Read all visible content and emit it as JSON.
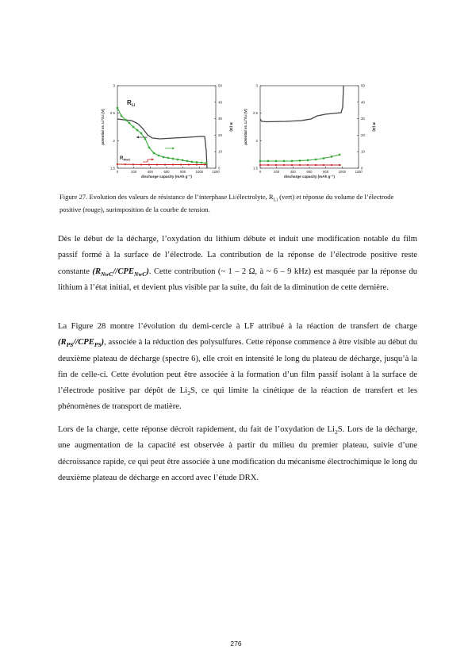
{
  "figure": {
    "left_panel": {
      "y_ticks": [
        "1.5",
        "2",
        "2.5",
        "3"
      ],
      "y2_ticks": [
        "0",
        "10",
        "20",
        "30",
        "40",
        "50"
      ],
      "x_ticks": [
        "0",
        "200",
        "400",
        "600",
        "800",
        "1000",
        "1200"
      ],
      "ylabel": "potential vs. Li⁺/Li (V)",
      "y2label": "R (Ω)",
      "xlabel": "discharge capacity (mAh g⁻¹)",
      "label_rli": "R",
      "label_rli_sub": "Li",
      "label_rnwc": "R",
      "label_rnwc_sub": "NwC"
    },
    "right_panel": {
      "y_ticks": [
        "1.5",
        "2",
        "2.5",
        "3"
      ],
      "y2_ticks": [
        "0",
        "10",
        "20",
        "30",
        "40",
        "50"
      ],
      "x_ticks": [
        "0",
        "200",
        "400",
        "600",
        "800",
        "1000",
        "1200"
      ],
      "ylabel": "potential vs. Li⁺/Li (V)",
      "y2label": "R (Ω)",
      "xlabel": "discharge capacity (mAh g⁻¹)"
    },
    "colors": {
      "rli": "#3cab3c",
      "rnwc": "#cc2222",
      "voltage": "#444444"
    }
  },
  "caption": {
    "a": "Figure 27. Evolution des valeurs de résistance de l’interphase Li/électrolyte, R",
    "a_sub": "Li",
    "b": " (vert) et réponse du volume de l’électrode  positive (rouge), surimposition de la courbe de tension."
  },
  "p1": {
    "a": "Dès le début de la décharge, l’oxydation du lithium débute et induit une modification notable du film passif formé à la surface de l’électrode. La contribution de la réponse de l’électrode positive reste constante ",
    "r": "(R",
    "r_sub": "NwC",
    "mid": "//CPE",
    "cpe_sub": "NwC",
    "close": ")",
    "b": ". Cette contribution (~ 1 – 2 Ω, à ~ 6 – 9 kHz) est masquée par la réponse du lithium à l’état initial, et devient plus visible par la suite, du fait de la diminution de cette dernière."
  },
  "p2": {
    "a": "La Figure 28 montre l’évolution du demi-cercle à LF attribué à la réaction de transfert de charge ",
    "r": "(R",
    "r_sub": "PS",
    "mid": "//CPE",
    "cpe_sub": "PS",
    "close": ")",
    "b": ", associée à la réduction des polysulfures. Cette réponse commence à être visible au début du deuxième plateau de décharge (spectre 6), elle croit en intensité le long du plateau de décharge, jusqu’à la fin de celle-ci. Cette évolution peut être associée à la formation d’un film passif isolant à la surface de l’électrode positive par dépôt de Li",
    "sub": "2",
    "c": "S, ce qui limite la cinétique de la réaction de transfert et les phénomènes de transport de matière."
  },
  "p3": {
    "a": "Lors de la charge, cette réponse décroit rapidement, du fait de l’oxydation de Li",
    "sub": "2",
    "b": "S. Lors de la décharge, une augmentation de la capacité est observée à partir du milieu du premier plateau, suivie d’une décroissance rapide, ce qui peut être associée à une modification du mécanisme électrochimique le long du deuxième plateau de décharge en accord avec l’étude DRX."
  },
  "page_number": "276"
}
